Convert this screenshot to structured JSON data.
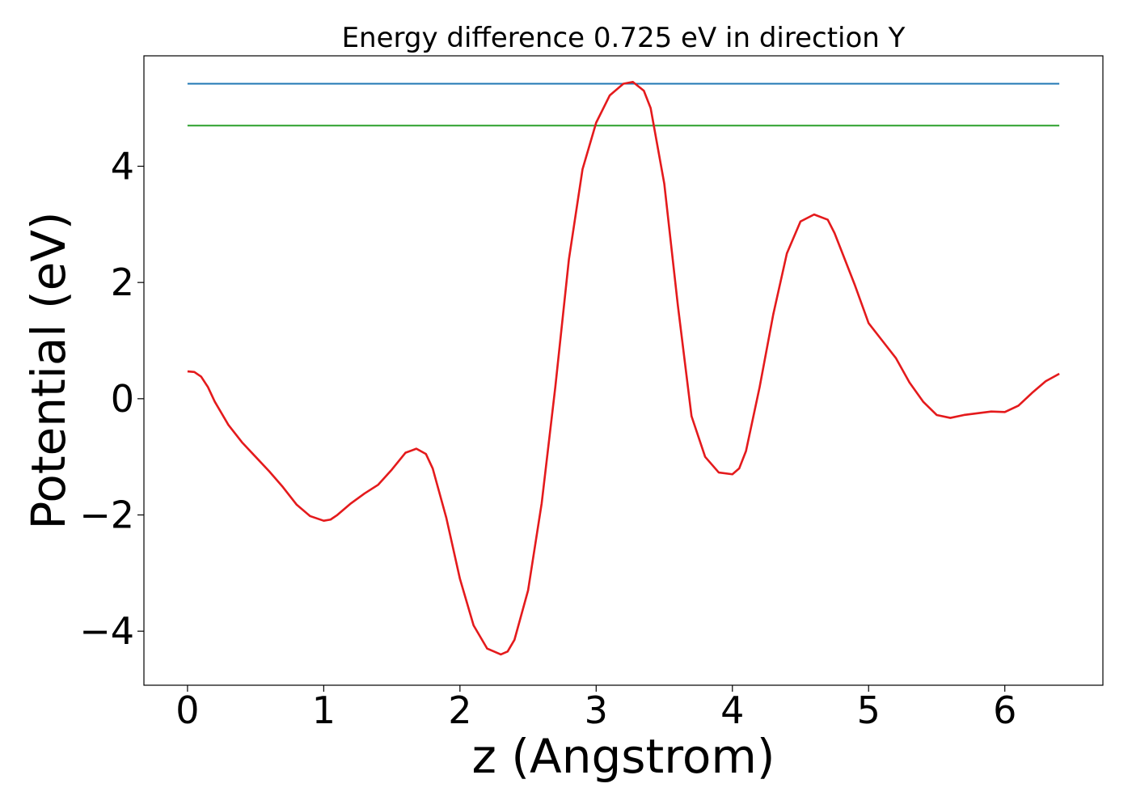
{
  "chart_data": {
    "type": "line",
    "title": "Energy difference 0.725 eV in direction Y",
    "xlabel": "z (Angstrom)",
    "ylabel": "Potential (eV)",
    "xlim": [
      -0.32,
      6.72
    ],
    "ylim": [
      -4.93,
      5.9
    ],
    "xticks": [
      0,
      1,
      2,
      3,
      4,
      5,
      6
    ],
    "xtick_labels": [
      "0",
      "1",
      "2",
      "3",
      "4",
      "5",
      "6"
    ],
    "yticks": [
      -4,
      -2,
      0,
      2,
      4
    ],
    "ytick_labels": [
      "−4",
      "−2",
      "0",
      "2",
      "4"
    ],
    "grid": false,
    "series": [
      {
        "color": "#1f77b4",
        "x": [
          0,
          6.4
        ],
        "y": [
          5.42,
          5.42
        ]
      },
      {
        "color": "#2ca02c",
        "x": [
          0,
          6.4
        ],
        "y": [
          4.7,
          4.7
        ]
      },
      {
        "color": "#e41a1c",
        "x": [
          0,
          0.05,
          0.1,
          0.15,
          0.2,
          0.3,
          0.4,
          0.5,
          0.6,
          0.7,
          0.8,
          0.9,
          1.0,
          1.05,
          1.1,
          1.2,
          1.3,
          1.4,
          1.5,
          1.6,
          1.68,
          1.75,
          1.8,
          1.9,
          2.0,
          2.1,
          2.2,
          2.3,
          2.35,
          2.4,
          2.5,
          2.6,
          2.7,
          2.8,
          2.9,
          3.0,
          3.1,
          3.2,
          3.27,
          3.35,
          3.4,
          3.5,
          3.6,
          3.7,
          3.8,
          3.9,
          4.0,
          4.05,
          4.1,
          4.2,
          4.3,
          4.4,
          4.5,
          4.6,
          4.7,
          4.75,
          4.8,
          4.9,
          5.0,
          5.1,
          5.2,
          5.3,
          5.4,
          5.5,
          5.6,
          5.7,
          5.8,
          5.9,
          6.0,
          6.1,
          6.2,
          6.3,
          6.4
        ],
        "y": [
          0.47,
          0.46,
          0.38,
          0.2,
          -0.05,
          -0.45,
          -0.75,
          -1.0,
          -1.25,
          -1.52,
          -1.82,
          -2.02,
          -2.1,
          -2.08,
          -2.0,
          -1.8,
          -1.63,
          -1.48,
          -1.22,
          -0.93,
          -0.86,
          -0.95,
          -1.2,
          -2.05,
          -3.1,
          -3.9,
          -4.3,
          -4.4,
          -4.35,
          -4.15,
          -3.3,
          -1.8,
          0.2,
          2.4,
          3.95,
          4.75,
          5.22,
          5.42,
          5.45,
          5.3,
          5.0,
          3.7,
          1.6,
          -0.3,
          -1.0,
          -1.27,
          -1.3,
          -1.2,
          -0.9,
          0.2,
          1.45,
          2.5,
          3.05,
          3.17,
          3.08,
          2.85,
          2.55,
          1.95,
          1.3,
          1.0,
          0.7,
          0.28,
          -0.05,
          -0.28,
          -0.33,
          -0.28,
          -0.25,
          -0.22,
          -0.23,
          -0.12,
          0.1,
          0.3,
          0.43
        ]
      }
    ]
  }
}
